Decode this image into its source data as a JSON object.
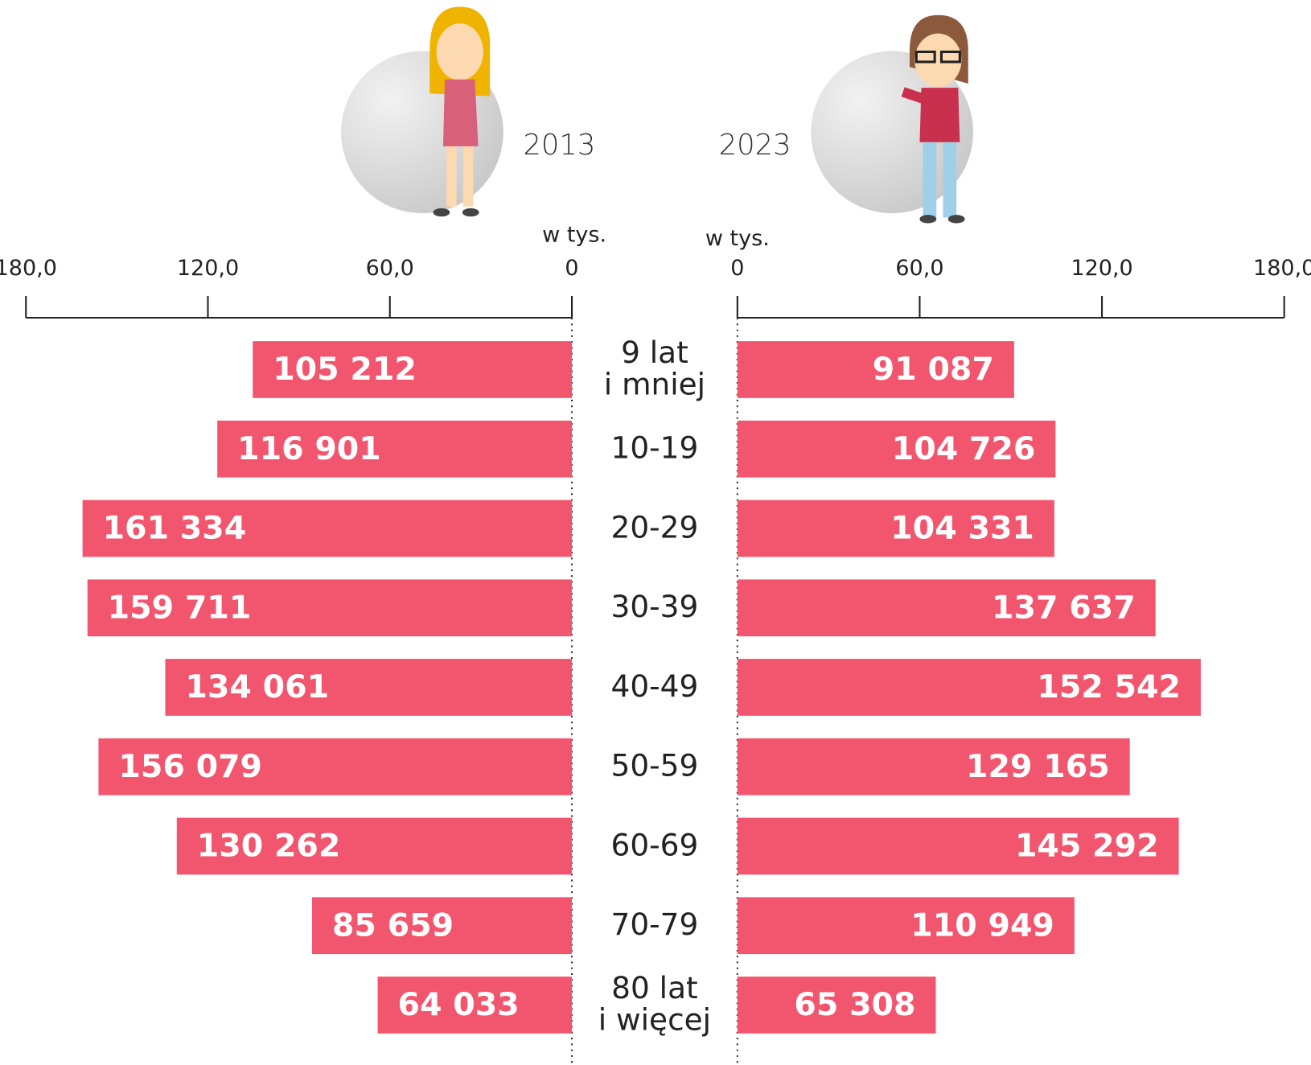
{
  "chart_data": {
    "type": "pyramid",
    "unit_label": "w tys.",
    "categories": [
      "9 lat\ni mniej",
      "10-19",
      "20-29",
      "30-39",
      "40-49",
      "50-59",
      "60-69",
      "70-79",
      "80 lat\ni więcej"
    ],
    "series": [
      {
        "name": "2013",
        "color": "#f2566e",
        "values": [
          105.212,
          116.901,
          161.334,
          159.711,
          134.061,
          156.079,
          130.262,
          85.659,
          64.033
        ],
        "value_labels": [
          "105 212",
          "116 901",
          "161 334",
          "159 711",
          "134 061",
          "156 079",
          "130 262",
          "85 659",
          "64 033"
        ]
      },
      {
        "name": "2023",
        "color": "#f2566e",
        "values": [
          91.087,
          104.726,
          104.331,
          137.637,
          152.542,
          129.165,
          145.292,
          110.949,
          65.308
        ],
        "value_labels": [
          "91 087",
          "104 726",
          "104 331",
          "137 637",
          "152 542",
          "129 165",
          "145 292",
          "110 949",
          "65 308"
        ]
      }
    ],
    "xlim": [
      0,
      180
    ],
    "xticks": [
      0,
      {
        "value": 60,
        "label": "60,0"
      },
      {
        "value": 120,
        "label": "120,0"
      },
      {
        "value": 180,
        "label": "180,0"
      }
    ]
  }
}
